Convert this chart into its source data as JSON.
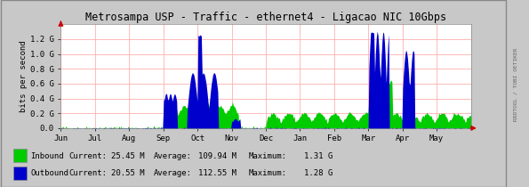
{
  "title": "Metrosampa USP - Traffic - ethernet4 - Ligacao NIC 10Gbps",
  "ylabel": "bits per second",
  "background_color": "#c8c8c8",
  "plot_background": "#ffffff",
  "grid_color": "#ffb0b0",
  "title_color": "#000000",
  "ytick_labels": [
    "0.0",
    "0.2 G",
    "0.4 G",
    "0.6 G",
    "0.8 G",
    "1.0 G",
    "1.2 G"
  ],
  "ytick_values": [
    0,
    200000000.0,
    400000000.0,
    600000000.0,
    800000000.0,
    1000000000.0,
    1200000000.0
  ],
  "ylim": [
    0,
    1400000000.0
  ],
  "xtick_labels": [
    "Jun",
    "Jul",
    "Aug",
    "Sep",
    "Oct",
    "Nov",
    "Dec",
    "Jan",
    "Feb",
    "Mar",
    "Apr",
    "May"
  ],
  "inbound_color": "#00cc00",
  "outbound_color": "#0000cc",
  "legend_inbound": "Inbound",
  "legend_outbound": "Outbound",
  "legend_current_in": "25.45 M",
  "legend_avg_in": "109.94 M",
  "legend_max_in": "1.31 G",
  "legend_current_out": "20.55 M",
  "legend_avg_out": "112.55 M",
  "legend_max_out": "1.28 G",
  "watermark": "RRDTOOL / TOBI OETIKER",
  "arrow_color": "#cc0000",
  "font_family": "monospace",
  "border_color": "#888888"
}
